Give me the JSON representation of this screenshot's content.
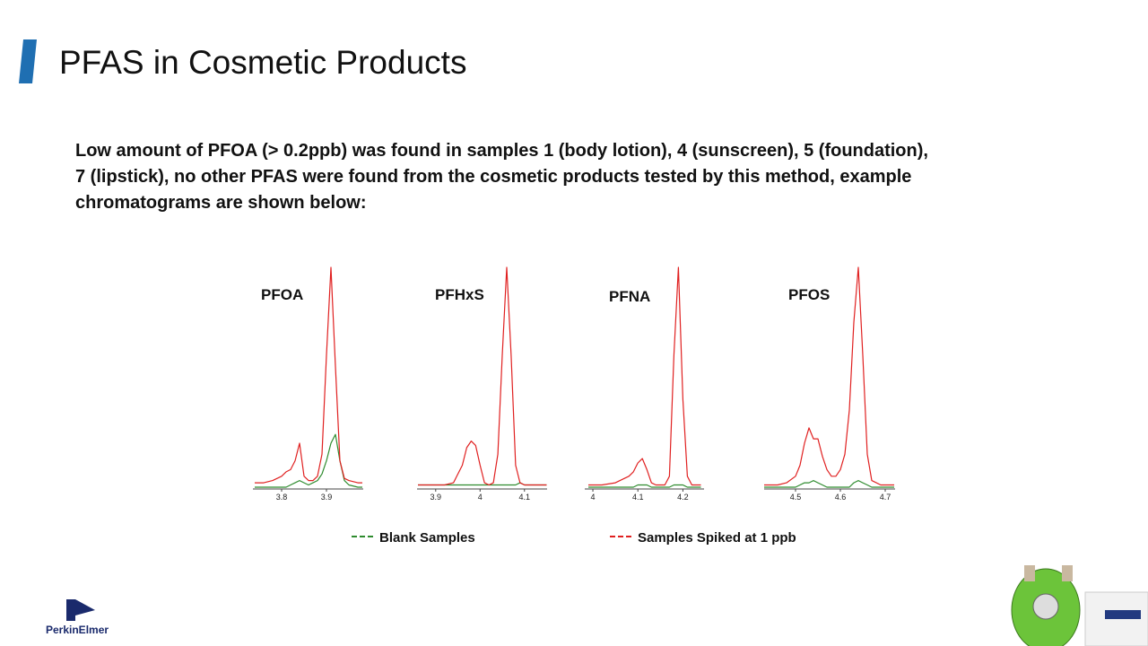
{
  "title": "PFAS in Cosmetic Products",
  "body": [
    "Low amount of PFOA (> 0.2ppb) was found in samples 1 (body lotion), 4 (sunscreen), 5 (foundation),",
    "7 (lipstick), no other PFAS were found from the cosmetic products tested by this method, example",
    "chromatograms are shown below:"
  ],
  "logo": "PerkinElmer",
  "chart_data": [
    {
      "type": "line",
      "title": "PFOA",
      "xlim": [
        3.736,
        3.982
      ],
      "xticks": [
        3.8,
        3.9
      ],
      "ylim": [
        0,
        100
      ],
      "x": [
        3.74,
        3.76,
        3.78,
        3.8,
        3.81,
        3.82,
        3.83,
        3.84,
        3.85,
        3.86,
        3.87,
        3.88,
        3.89,
        3.9,
        3.91,
        3.92,
        3.93,
        3.94,
        3.95,
        3.97,
        3.98
      ],
      "series": [
        {
          "name": "Blank Samples",
          "color": "#2e8b2e",
          "values": [
            0,
            0,
            0,
            0,
            0,
            1,
            2,
            3,
            2,
            1,
            2,
            3,
            6,
            12,
            20,
            24,
            12,
            3,
            1,
            0,
            0
          ]
        },
        {
          "name": "Samples Spiked at 1 ppb",
          "color": "#e02020",
          "values": [
            2,
            2,
            3,
            5,
            7,
            8,
            12,
            20,
            5,
            3,
            3,
            5,
            15,
            60,
            100,
            55,
            12,
            4,
            3,
            2,
            2
          ]
        }
      ]
    },
    {
      "type": "line",
      "title": "PFHxS",
      "xlim": [
        3.858,
        4.151
      ],
      "xticks": [
        3.9,
        4,
        4.1
      ],
      "ylim": [
        0,
        100
      ],
      "x": [
        3.86,
        3.88,
        3.9,
        3.92,
        3.94,
        3.96,
        3.97,
        3.98,
        3.99,
        4.0,
        4.01,
        4.02,
        4.03,
        4.04,
        4.05,
        4.06,
        4.07,
        4.08,
        4.09,
        4.1,
        4.12,
        4.15
      ],
      "series": [
        {
          "color": "#2e8b2e",
          "values": [
            1,
            1,
            1,
            1,
            1,
            1,
            1,
            1,
            1,
            1,
            1,
            1,
            1,
            1,
            1,
            1,
            1,
            1,
            2,
            1,
            1,
            1
          ]
        },
        {
          "color": "#e02020",
          "values": [
            1,
            1,
            1,
            1,
            2,
            10,
            18,
            21,
            19,
            10,
            2,
            1,
            2,
            15,
            60,
            100,
            60,
            10,
            2,
            1,
            1,
            1
          ]
        }
      ]
    },
    {
      "type": "line",
      "title": "PFNA",
      "xlim": [
        3.982,
        4.247
      ],
      "xticks": [
        4,
        4.1,
        4.2
      ],
      "ylim": [
        0,
        100
      ],
      "x": [
        3.99,
        4.02,
        4.05,
        4.07,
        4.08,
        4.09,
        4.1,
        4.11,
        4.12,
        4.13,
        4.14,
        4.15,
        4.16,
        4.17,
        4.18,
        4.19,
        4.2,
        4.21,
        4.22,
        4.24
      ],
      "series": [
        {
          "color": "#2e8b2e",
          "values": [
            0,
            0,
            0,
            0,
            0,
            0,
            1,
            1,
            1,
            0,
            0,
            0,
            0,
            0,
            1,
            1,
            1,
            0,
            0,
            0
          ]
        },
        {
          "color": "#e02020",
          "values": [
            1,
            1,
            2,
            4,
            5,
            7,
            11,
            13,
            8,
            2,
            1,
            1,
            1,
            5,
            60,
            100,
            40,
            5,
            1,
            1
          ]
        }
      ]
    },
    {
      "type": "line",
      "title": "PFOS",
      "xlim": [
        4.43,
        4.722
      ],
      "xticks": [
        4.5,
        4.6,
        4.7
      ],
      "ylim": [
        0,
        100
      ],
      "x": [
        4.43,
        4.46,
        4.48,
        4.5,
        4.51,
        4.52,
        4.53,
        4.54,
        4.55,
        4.56,
        4.57,
        4.58,
        4.59,
        4.6,
        4.61,
        4.62,
        4.63,
        4.64,
        4.65,
        4.66,
        4.67,
        4.69,
        4.72
      ],
      "series": [
        {
          "color": "#2e8b2e",
          "values": [
            0,
            0,
            0,
            0,
            1,
            2,
            2,
            3,
            2,
            1,
            0,
            0,
            0,
            0,
            0,
            0,
            2,
            3,
            2,
            1,
            0,
            0,
            0
          ]
        },
        {
          "color": "#e02020",
          "values": [
            1,
            1,
            2,
            5,
            10,
            20,
            27,
            22,
            22,
            14,
            8,
            5,
            5,
            8,
            15,
            35,
            75,
            100,
            60,
            15,
            3,
            1,
            1
          ]
        }
      ]
    }
  ]
}
